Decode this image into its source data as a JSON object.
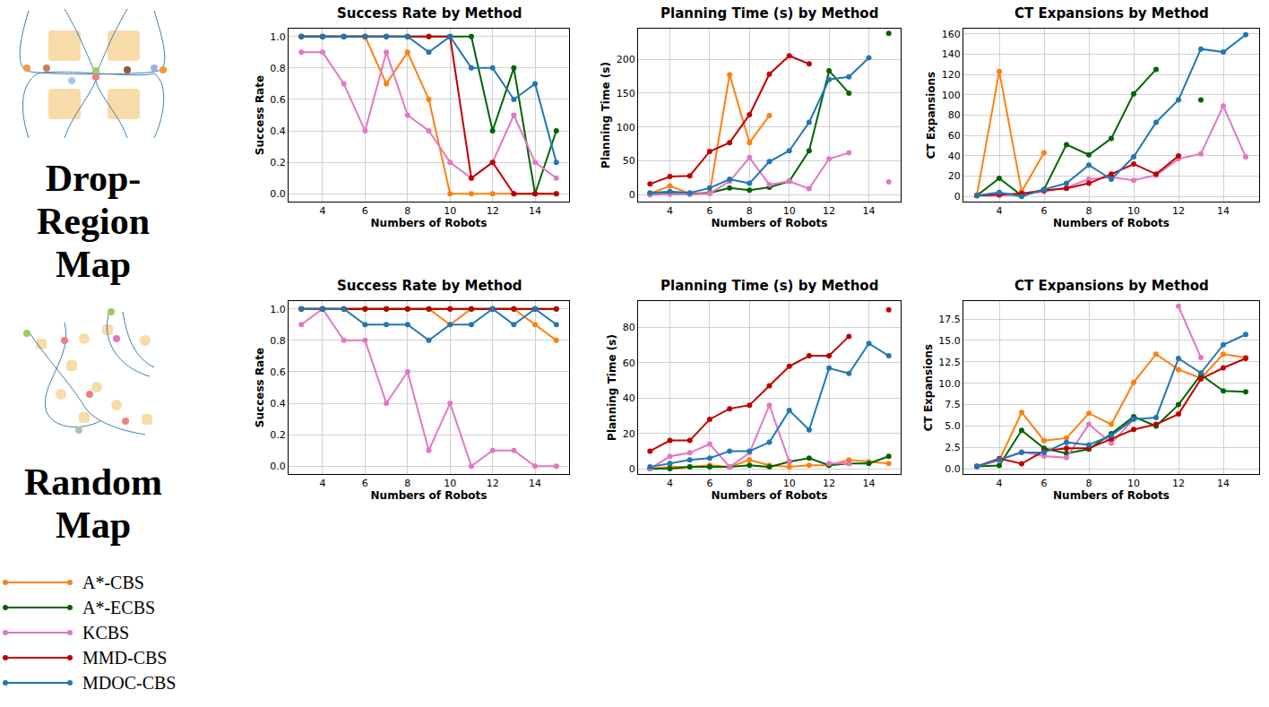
{
  "row_labels": [
    "Drop-Region Map",
    "Random Map"
  ],
  "chart_data": [
    {
      "type": "line",
      "title": "Success Rate by Method",
      "x_label": "Numbers of Robots",
      "y_label": "Success Rate",
      "legend": "lower left",
      "grid": true,
      "x": [
        3,
        4,
        5,
        6,
        7,
        8,
        9,
        10,
        11,
        12,
        13,
        14,
        15
      ],
      "xlim": [
        2.4,
        15.6
      ],
      "xticks": [
        4,
        6,
        8,
        10,
        12,
        14
      ],
      "ylim": [
        -0.05,
        1.05
      ],
      "yticks": [
        {
          "value": 0,
          "label": "0.0"
        },
        0.2,
        0.4,
        0.6,
        0.8,
        {
          "value": 1,
          "label": "1.0"
        }
      ],
      "series": [
        {
          "name": "A*-CBS",
          "color": "#ff7f0e",
          "values": [
            1,
            1,
            1,
            1,
            0.7,
            0.9,
            0.6,
            0,
            0,
            0,
            0,
            0,
            0
          ]
        },
        {
          "name": "A*-ECBS",
          "color": "#006400",
          "values": [
            1,
            1,
            1,
            1,
            1,
            1,
            1,
            1,
            1,
            0.4,
            0.8,
            0,
            0.4
          ]
        },
        {
          "name": "KCBS",
          "color": "#e377c2",
          "values": [
            0.9,
            0.9,
            0.7,
            0.4,
            0.9,
            0.5,
            0.4,
            0.2,
            0.1,
            0.2,
            0.5,
            0.2,
            0.1
          ]
        },
        {
          "name": "MMD-CBS",
          "color": "#c00000",
          "values": [
            1,
            1,
            1,
            1,
            1,
            1,
            1,
            1,
            0.1,
            0.2,
            0,
            0,
            0
          ]
        },
        {
          "name": "MDOC-CBS",
          "color": "#1f77b4",
          "values": [
            1,
            1,
            1,
            1,
            1,
            1,
            0.9,
            1,
            0.8,
            0.8,
            0.6,
            0.7,
            0.2
          ]
        }
      ]
    },
    {
      "type": "line",
      "title": "Planning Time (s) by Method",
      "x_label": "Numbers of Robots",
      "y_label": "Planning Time (s)",
      "grid": true,
      "x": [
        3,
        4,
        5,
        6,
        7,
        8,
        9,
        10,
        11,
        12,
        13,
        14,
        15
      ],
      "xlim": [
        2.4,
        15.6
      ],
      "xticks": [
        4,
        6,
        8,
        10,
        12,
        14
      ],
      "ylim": [
        -10,
        245
      ],
      "yticks": [
        0,
        50,
        100,
        150,
        200
      ],
      "series": [
        {
          "name": "A*-CBS",
          "color": "#ff7f0e",
          "values": [
            2,
            13,
            2,
            3,
            177,
            77,
            117,
            null,
            null,
            null,
            null,
            null,
            null
          ]
        },
        {
          "name": "A*-ECBS",
          "color": "#006400",
          "values": [
            1,
            2,
            1,
            3,
            10,
            7,
            11,
            20,
            65,
            183,
            150,
            null,
            238
          ]
        },
        {
          "name": "KCBS",
          "color": "#e377c2",
          "values": [
            0,
            1,
            1,
            2,
            20,
            55,
            15,
            20,
            9,
            53,
            62,
            null,
            19
          ]
        },
        {
          "name": "MMD-CBS",
          "color": "#c00000",
          "values": [
            16,
            27,
            28,
            64,
            77,
            118,
            178,
            205,
            193,
            null,
            null,
            null,
            null
          ]
        },
        {
          "name": "MDOC-CBS",
          "color": "#1f77b4",
          "values": [
            3,
            5,
            3,
            10,
            23,
            17,
            49,
            65,
            107,
            170,
            174,
            202,
            null
          ]
        }
      ]
    },
    {
      "type": "line",
      "title": "CT Expansions by Method",
      "x_label": "Numbers of Robots",
      "y_label": "CT Expansions",
      "grid": true,
      "x": [
        3,
        4,
        5,
        6,
        7,
        8,
        9,
        10,
        11,
        12,
        13,
        14,
        15
      ],
      "xlim": [
        2.4,
        15.6
      ],
      "xticks": [
        4,
        6,
        8,
        10,
        12,
        14
      ],
      "ylim": [
        -5,
        165
      ],
      "yticks": [
        0,
        20,
        40,
        60,
        80,
        100,
        120,
        140,
        160
      ],
      "series": [
        {
          "name": "A*-CBS",
          "color": "#ff7f0e",
          "values": [
            1,
            123,
            5,
            43,
            null,
            null,
            null,
            null,
            null,
            null,
            null,
            null,
            null
          ]
        },
        {
          "name": "A*-ECBS",
          "color": "#006400",
          "values": [
            1,
            18,
            1,
            7,
            51,
            41,
            57,
            101,
            125,
            null,
            95,
            null,
            null
          ]
        },
        {
          "name": "KCBS",
          "color": "#e377c2",
          "values": [
            1,
            1,
            2,
            5,
            9,
            17,
            19,
            16,
            21,
            37,
            42,
            89,
            39
          ]
        },
        {
          "name": "MMD-CBS",
          "color": "#c00000",
          "values": [
            1,
            2,
            3,
            6,
            8,
            13,
            22,
            32,
            22,
            40,
            null,
            null,
            null
          ]
        },
        {
          "name": "MDOC-CBS",
          "color": "#1f77b4",
          "values": [
            1,
            4,
            0,
            7,
            13,
            31,
            17,
            39,
            73,
            95,
            145,
            142,
            159
          ]
        }
      ]
    },
    {
      "type": "line",
      "title": "Success Rate by Method",
      "x_label": "Numbers of Robots",
      "y_label": "Success Rate",
      "grid": true,
      "x": [
        3,
        4,
        5,
        6,
        7,
        8,
        9,
        10,
        11,
        12,
        13,
        14,
        15
      ],
      "xlim": [
        2.4,
        15.6
      ],
      "xticks": [
        4,
        6,
        8,
        10,
        12,
        14
      ],
      "ylim": [
        -0.05,
        1.05
      ],
      "yticks": [
        {
          "value": 0,
          "label": "0.0"
        },
        0.2,
        0.4,
        0.6,
        0.8,
        {
          "value": 1,
          "label": "1.0"
        }
      ],
      "series": [
        {
          "name": "A*-CBS",
          "color": "#ff7f0e",
          "values": [
            1,
            1,
            1,
            1,
            1,
            1,
            1,
            0.9,
            1,
            1,
            1,
            0.9,
            0.8
          ]
        },
        {
          "name": "A*-ECBS",
          "color": "#006400",
          "values": [
            1,
            1,
            1,
            1,
            1,
            1,
            1,
            1,
            1,
            1,
            1,
            1,
            1
          ]
        },
        {
          "name": "KCBS",
          "color": "#e377c2",
          "values": [
            0.9,
            1,
            0.8,
            0.8,
            0.4,
            0.6,
            0.1,
            0.4,
            0,
            0.1,
            0.1,
            0,
            0
          ]
        },
        {
          "name": "MMD-CBS",
          "color": "#c00000",
          "values": [
            1,
            1,
            1,
            1,
            1,
            1,
            1,
            1,
            1,
            1,
            1,
            1,
            1
          ]
        },
        {
          "name": "MDOC-CBS",
          "color": "#1f77b4",
          "values": [
            1,
            1,
            1,
            0.9,
            0.9,
            0.9,
            0.8,
            0.9,
            0.9,
            1,
            0.9,
            1,
            0.9
          ]
        }
      ]
    },
    {
      "type": "line",
      "title": "Planning Time (s) by Method",
      "x_label": "Numbers of Robots",
      "y_label": "Planning Time (s)",
      "grid": true,
      "x": [
        3,
        4,
        5,
        6,
        7,
        8,
        9,
        10,
        11,
        12,
        13,
        14,
        15
      ],
      "xlim": [
        2.4,
        15.6
      ],
      "xticks": [
        4,
        6,
        8,
        10,
        12,
        14
      ],
      "ylim": [
        -3,
        95
      ],
      "yticks": [
        0,
        20,
        40,
        60,
        80
      ],
      "series": [
        {
          "name": "A*-CBS",
          "color": "#ff7f0e",
          "values": [
            0,
            1,
            1,
            2,
            1,
            5,
            2,
            1,
            2,
            2,
            5,
            4,
            3
          ]
        },
        {
          "name": "A*-ECBS",
          "color": "#006400",
          "values": [
            0,
            0,
            1,
            1,
            1,
            2,
            1,
            4,
            6,
            2,
            3,
            3,
            7
          ]
        },
        {
          "name": "KCBS",
          "color": "#e377c2",
          "values": [
            0,
            7,
            9,
            14,
            1,
            9,
            36,
            4,
            null,
            3,
            3,
            null,
            null
          ]
        },
        {
          "name": "MMD-CBS",
          "color": "#c00000",
          "values": [
            10,
            16,
            16,
            28,
            34,
            36,
            47,
            58,
            64,
            64,
            75,
            null,
            90
          ]
        },
        {
          "name": "MDOC-CBS",
          "color": "#1f77b4",
          "values": [
            1,
            3,
            5,
            6,
            10,
            10,
            15,
            33,
            22,
            57,
            54,
            71,
            64
          ]
        }
      ]
    },
    {
      "type": "line",
      "title": "CT Expansions by Method",
      "x_label": "Numbers of Robots",
      "y_label": "CT Expansions",
      "grid": true,
      "x": [
        3,
        4,
        5,
        6,
        7,
        8,
        9,
        10,
        11,
        12,
        13,
        14,
        15
      ],
      "xlim": [
        2.4,
        15.6
      ],
      "xticks": [
        4,
        6,
        8,
        10,
        12,
        14
      ],
      "ylim": [
        -0.6,
        19.6
      ],
      "yticks": [
        {
          "value": 0,
          "label": "0.0"
        },
        2.5,
        {
          "value": 5,
          "label": "5.0"
        },
        7.5,
        {
          "value": 10,
          "label": "10.0"
        },
        12.5,
        {
          "value": 15,
          "label": "15.0"
        },
        17.5
      ],
      "series": [
        {
          "name": "A*-CBS",
          "color": "#ff7f0e",
          "values": [
            0.3,
            1,
            6.6,
            3.3,
            3.6,
            6.5,
            5.2,
            10.1,
            13.4,
            11.6,
            10.6,
            13.4,
            13.0
          ]
        },
        {
          "name": "A*-ECBS",
          "color": "#006400",
          "values": [
            0.3,
            0.4,
            4.5,
            2.4,
            1.8,
            2.3,
            4.1,
            6.1,
            5.0,
            7.5,
            11.0,
            9.1,
            9.0
          ]
        },
        {
          "name": "KCBS",
          "color": "#e377c2",
          "values": [
            0.3,
            1,
            2,
            1.5,
            1.3,
            5.2,
            3,
            5.8,
            null,
            19,
            13,
            null,
            null
          ]
        },
        {
          "name": "MMD-CBS",
          "color": "#c00000",
          "values": [
            0.3,
            1.2,
            0.6,
            2.1,
            2.4,
            2.4,
            3.5,
            4.6,
            5.2,
            6.4,
            10.5,
            11.8,
            12.9
          ]
        },
        {
          "name": "MDOC-CBS",
          "color": "#1f77b4",
          "values": [
            0.3,
            1.1,
            1.9,
            1.9,
            3.1,
            2.8,
            3.9,
            5.8,
            6.0,
            12.9,
            11.2,
            14.5,
            15.7
          ]
        }
      ]
    }
  ]
}
